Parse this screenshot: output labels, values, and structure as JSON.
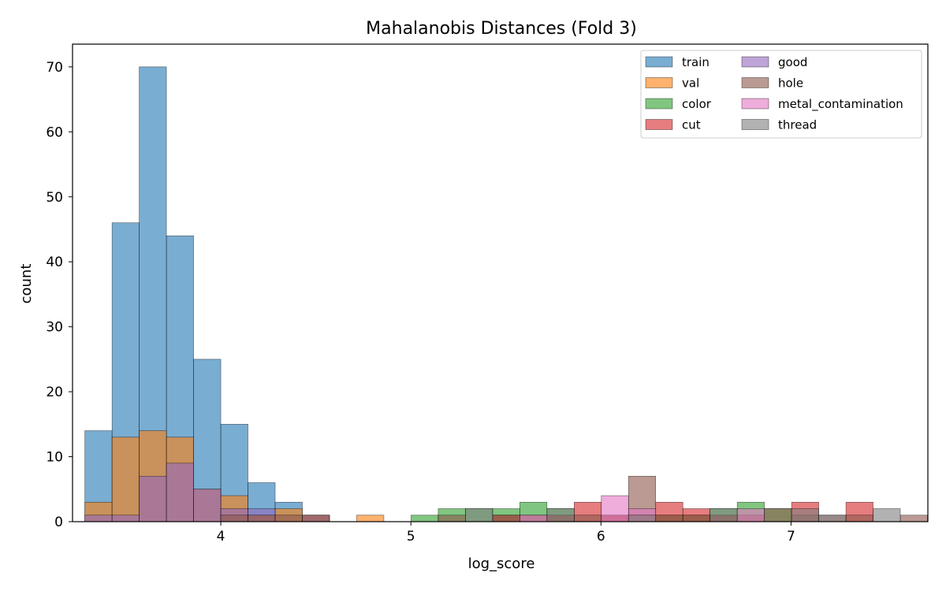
{
  "chart_data": {
    "type": "histogram",
    "title": "Mahalanobis Distances (Fold 3)",
    "xlabel": "log_score",
    "ylabel": "count",
    "xlim": [
      3.22,
      7.72
    ],
    "ylim": [
      0,
      73.5
    ],
    "xticks": [
      4,
      5,
      6,
      7
    ],
    "yticks": [
      0,
      10,
      20,
      30,
      40,
      50,
      60,
      70
    ],
    "bin_start": 3.285,
    "bin_width": 0.143,
    "grid": false,
    "legend_position": "top-right",
    "legend_columns": 2,
    "series": [
      {
        "name": "train",
        "color": "#1f77b4",
        "counts": [
          14,
          46,
          70,
          44,
          25,
          15,
          6,
          3
        ]
      },
      {
        "name": "val",
        "color": "#ff7f0e",
        "counts": [
          3,
          13,
          14,
          13,
          5,
          4,
          1,
          2,
          1,
          0,
          1
        ]
      },
      {
        "name": "color",
        "color": "#2ca02c",
        "counts": [
          0,
          0,
          0,
          0,
          0,
          0,
          0,
          0,
          0,
          0,
          0,
          0,
          1,
          2,
          2,
          2,
          3,
          2,
          0,
          0,
          0,
          1,
          1,
          2,
          3,
          2,
          0,
          0,
          0,
          0,
          0
        ]
      },
      {
        "name": "cut",
        "color": "#d62728",
        "counts": [
          0,
          0,
          0,
          0,
          0,
          0,
          0,
          0,
          0,
          0,
          0,
          0,
          0,
          0,
          0,
          1,
          0,
          1,
          3,
          1,
          1,
          3,
          2,
          1,
          0,
          0,
          3,
          0,
          3,
          0,
          0
        ]
      },
      {
        "name": "good",
        "color": "#9467bd",
        "counts": [
          1,
          1,
          7,
          9,
          5,
          2,
          2,
          0,
          1
        ]
      },
      {
        "name": "hole",
        "color": "#8c564b",
        "counts": [
          0,
          0,
          0,
          0,
          0,
          1,
          1,
          1,
          1,
          0,
          0,
          0,
          0,
          1,
          0,
          1,
          1,
          1,
          1,
          1,
          7,
          1,
          1,
          1,
          1,
          2,
          1,
          1,
          1,
          0,
          1
        ]
      },
      {
        "name": "metal_contamination",
        "color": "#e377c2",
        "counts": [
          0,
          0,
          0,
          0,
          0,
          0,
          0,
          0,
          0,
          0,
          0,
          0,
          0,
          0,
          0,
          0,
          1,
          0,
          0,
          4,
          2,
          0,
          0,
          0,
          2,
          0,
          0,
          0,
          0,
          0,
          0
        ]
      },
      {
        "name": "thread",
        "color": "#7f7f7f",
        "counts": [
          0,
          0,
          0,
          0,
          0,
          0,
          0,
          0,
          0,
          0,
          0,
          0,
          0,
          0,
          2,
          0,
          0,
          2,
          0,
          0,
          1,
          0,
          0,
          2,
          0,
          0,
          2,
          1,
          0,
          2,
          0
        ]
      }
    ]
  }
}
